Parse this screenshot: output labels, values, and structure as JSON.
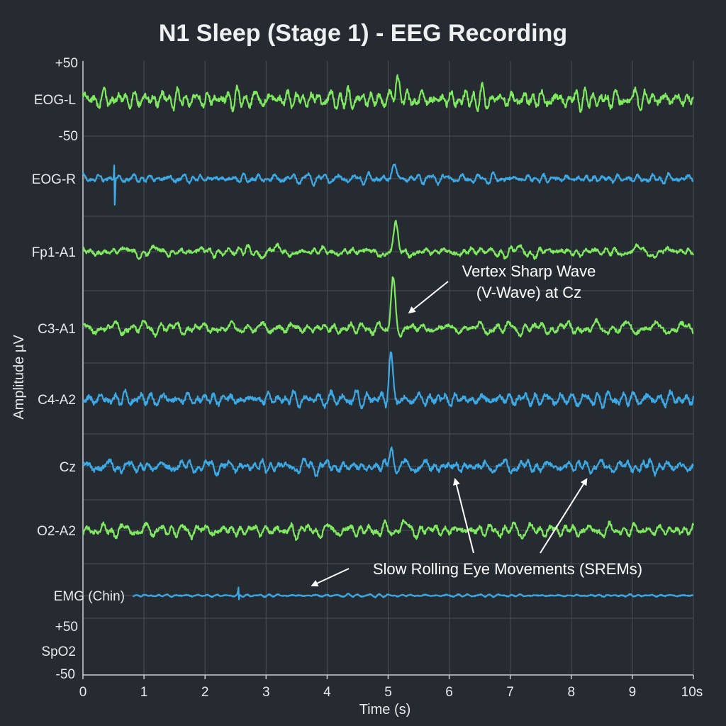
{
  "colors": {
    "background": "#262b31",
    "green": "#7ee85e",
    "blue": "#3aa9e6",
    "grid": "#4a5058",
    "text": "#e8eaed"
  },
  "chart_data": {
    "type": "line",
    "title": "N1 Sleep (Stage 1) - EEG Recording",
    "xlabel": "Time (s)",
    "ylabel": "Amplitude µV",
    "xlim": [
      0,
      10
    ],
    "x_ticks": [
      "0",
      "1",
      "2",
      "3",
      "4",
      "5",
      "6",
      "7",
      "8",
      "9",
      "10s"
    ],
    "grid": true,
    "scale_labels": {
      "top_plus": "+50",
      "top_minus": "-50",
      "bottom_plus": "+50",
      "bottom_minus": "-50"
    },
    "channels": [
      {
        "name": "EOG-L",
        "color": "green",
        "noise_uv": 14,
        "event": {
          "t": 5.15,
          "amp_uv": 34
        }
      },
      {
        "name": "EOG-R",
        "color": "blue",
        "noise_uv": 7,
        "spike": {
          "t": 0.52,
          "amp_uv": 36
        },
        "event": {
          "t": 5.1,
          "amp_uv": 22
        }
      },
      {
        "name": "Fp1-A1",
        "color": "green",
        "noise_uv": 8,
        "event": {
          "t": 5.12,
          "amp_uv": 34
        }
      },
      {
        "name": "C3-A1",
        "color": "green",
        "noise_uv": 9,
        "event": {
          "t": 5.08,
          "amp_uv": 70
        }
      },
      {
        "name": "C4-A2",
        "color": "blue",
        "noise_uv": 11,
        "event": {
          "t": 5.04,
          "amp_uv": 62
        }
      },
      {
        "name": "Cz",
        "color": "blue",
        "noise_uv": 10,
        "event": {
          "t": 5.05,
          "amp_uv": 26
        }
      },
      {
        "name": "O2-A2",
        "color": "green",
        "noise_uv": 10,
        "event": {
          "t": 5.25,
          "amp_uv": 14
        }
      },
      {
        "name": "EMG (Chin)",
        "color": "blue",
        "noise_uv": 2,
        "start_s": 0.82,
        "spike": {
          "t": 2.55,
          "amp_uv": 10
        }
      },
      {
        "name": "SpO2",
        "color": "green",
        "empty": true
      }
    ],
    "annotations": [
      {
        "text_lines": [
          "Vertex Sharp Wave",
          "(V-Wave) at Cz"
        ],
        "target": {
          "t": 5.3,
          "channel": "C3-A1"
        }
      },
      {
        "text_lines": [
          "Slow Rolling Eye Movements (SREMs)"
        ],
        "targets": [
          {
            "t": 6.05,
            "channel": "Cz"
          },
          {
            "t": 8.25,
            "channel": "Cz"
          },
          {
            "t": 3.8,
            "channel": "EMG (Chin)"
          }
        ]
      }
    ]
  }
}
